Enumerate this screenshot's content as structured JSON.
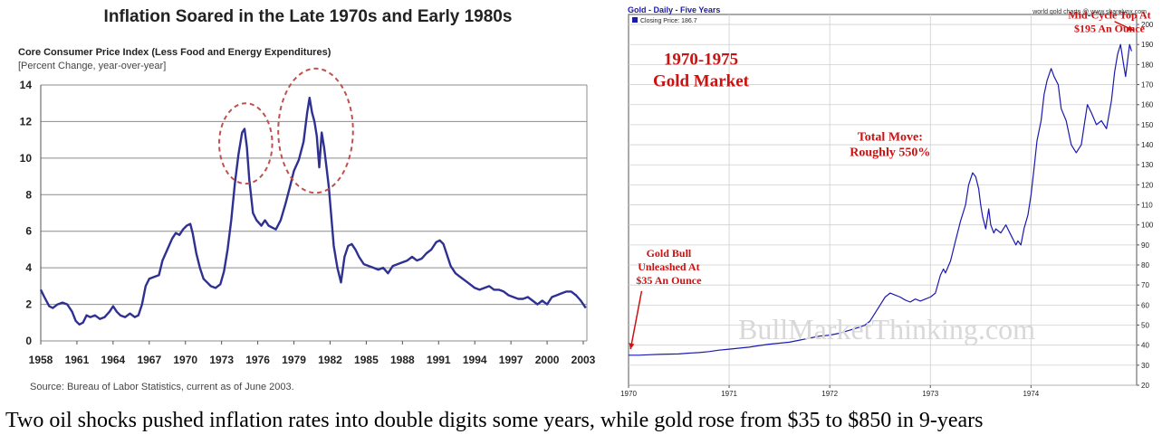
{
  "caption": "Two oil shocks pushed inflation rates into double digits some years, while gold rose from $35 to $850 in 9-years",
  "chart_data": [
    {
      "type": "line",
      "title": "Inflation Soared in the Late 1970s and Early 1980s",
      "subtitle": "Core Consumer Price Index (Less Food and Energy Expenditures)",
      "ylabel": "[Percent Change, year-over-year]",
      "source": "Source: Bureau of Labor Statistics, current as of June 2003.",
      "ylim": [
        0,
        14
      ],
      "xlim": [
        1958,
        2003.3
      ],
      "yticks": [
        "0",
        "2",
        "4",
        "6",
        "8",
        "10",
        "12",
        "14"
      ],
      "xticks": [
        "1958",
        "1961",
        "1964",
        "1967",
        "1970",
        "1973",
        "1976",
        "1979",
        "1982",
        "1985",
        "1988",
        "1991",
        "1994",
        "1997",
        "2000",
        "2003"
      ],
      "grid": true,
      "line_color": "#2e3192",
      "highlight_color": "#c0504d",
      "highlights": [
        {
          "x": 1975.0,
          "y": 10.8,
          "rx": 2.2,
          "ry": 2.2
        },
        {
          "x": 1980.8,
          "y": 11.5,
          "rx": 3.1,
          "ry": 3.4
        }
      ],
      "series": [
        {
          "x": [
            1958.0,
            1958.3,
            1958.7,
            1959.0,
            1959.4,
            1959.8,
            1960.2,
            1960.6,
            1960.9,
            1961.2,
            1961.5,
            1961.8,
            1962.1,
            1962.5,
            1962.9,
            1963.3,
            1963.7,
            1964.0,
            1964.3,
            1964.6,
            1965.0,
            1965.4,
            1965.8,
            1966.1,
            1966.4,
            1966.7,
            1967.0,
            1967.4,
            1967.8,
            1968.1,
            1968.5,
            1968.9,
            1969.2,
            1969.5,
            1969.8,
            1970.1,
            1970.4,
            1970.6,
            1970.9,
            1971.2,
            1971.5,
            1971.8,
            1972.1,
            1972.5,
            1972.9,
            1973.2,
            1973.5,
            1973.8,
            1974.1,
            1974.4,
            1974.7,
            1974.9,
            1975.1,
            1975.3,
            1975.6,
            1975.9,
            1976.3,
            1976.6,
            1976.9,
            1977.2,
            1977.5,
            1977.9,
            1978.3,
            1978.7,
            1979.0,
            1979.4,
            1979.8,
            1980.1,
            1980.3,
            1980.5,
            1980.7,
            1980.9,
            1981.1,
            1981.3,
            1981.5,
            1981.7,
            1981.9,
            1982.1,
            1982.3,
            1982.6,
            1982.9,
            1983.2,
            1983.5,
            1983.8,
            1984.1,
            1984.4,
            1984.8,
            1985.2,
            1985.6,
            1986.0,
            1986.4,
            1986.8,
            1987.2,
            1987.6,
            1988.0,
            1988.4,
            1988.8,
            1989.2,
            1989.6,
            1990.0,
            1990.4,
            1990.8,
            1991.1,
            1991.4,
            1991.7,
            1992.0,
            1992.4,
            1992.8,
            1993.2,
            1993.6,
            1994.0,
            1994.4,
            1994.8,
            1995.2,
            1995.6,
            1996.0,
            1996.4,
            1996.8,
            1997.2,
            1997.6,
            1998.0,
            1998.4,
            1998.8,
            1999.2,
            1999.6,
            2000.0,
            2000.4,
            2000.8,
            2001.2,
            2001.6,
            2002.0,
            2002.4,
            2002.8,
            2003.2
          ],
          "y": [
            2.8,
            2.4,
            1.9,
            1.8,
            2.0,
            2.1,
            2.0,
            1.6,
            1.1,
            0.9,
            1.0,
            1.4,
            1.3,
            1.4,
            1.2,
            1.3,
            1.6,
            1.9,
            1.6,
            1.4,
            1.3,
            1.5,
            1.3,
            1.4,
            2.0,
            3.0,
            3.4,
            3.5,
            3.6,
            4.4,
            5.0,
            5.6,
            5.9,
            5.8,
            6.1,
            6.3,
            6.4,
            5.9,
            4.8,
            4.0,
            3.4,
            3.2,
            3.0,
            2.9,
            3.1,
            3.8,
            5.0,
            6.6,
            8.6,
            10.2,
            11.4,
            11.6,
            10.6,
            8.8,
            7.0,
            6.6,
            6.3,
            6.6,
            6.3,
            6.2,
            6.1,
            6.6,
            7.5,
            8.5,
            9.3,
            9.9,
            10.9,
            12.5,
            13.3,
            12.5,
            12.0,
            11.2,
            9.5,
            11.4,
            10.6,
            9.5,
            8.4,
            6.8,
            5.2,
            4.0,
            3.2,
            4.6,
            5.2,
            5.3,
            5.0,
            4.6,
            4.2,
            4.1,
            4.0,
            3.9,
            4.0,
            3.7,
            4.1,
            4.2,
            4.3,
            4.4,
            4.6,
            4.4,
            4.5,
            4.8,
            5.0,
            5.4,
            5.5,
            5.3,
            4.7,
            4.1,
            3.7,
            3.5,
            3.3,
            3.1,
            2.9,
            2.8,
            2.9,
            3.0,
            2.8,
            2.8,
            2.7,
            2.5,
            2.4,
            2.3,
            2.3,
            2.4,
            2.2,
            2.0,
            2.2,
            2.0,
            2.4,
            2.5,
            2.6,
            2.7,
            2.7,
            2.5,
            2.2,
            1.8
          ]
        }
      ]
    },
    {
      "type": "line",
      "title": "Gold - Daily - Five Years",
      "credit": "world gold charts @ www.sharelynx.com",
      "legend": "Closing Price: 186.7",
      "watermark": "BullMarketThinking.com",
      "xlim": [
        1970,
        1975.05
      ],
      "ylim": [
        20,
        205
      ],
      "xticks": [
        {
          "label": "1970",
          "x": 1970
        },
        {
          "label": "1971",
          "x": 1971
        },
        {
          "label": "1972",
          "x": 1972
        },
        {
          "label": "1973",
          "x": 1973
        },
        {
          "label": "1974",
          "x": 1974
        }
      ],
      "yticks": [
        "20",
        "30",
        "40",
        "50",
        "60",
        "70",
        "80",
        "90",
        "100",
        "110",
        "120",
        "130",
        "140",
        "150",
        "160",
        "170",
        "180",
        "190",
        "200"
      ],
      "grid": true,
      "line_color": "#1a1ab0",
      "annotation_color": "#cc1111",
      "annotations": [
        {
          "lines": [
            "1970-1975",
            "Gold Market"
          ],
          "x": 1970.72,
          "y": 180,
          "size": "large"
        },
        {
          "lines": [
            "Total Move:",
            "Roughly 550%"
          ],
          "x": 1972.6,
          "y": 142,
          "size": "medium"
        },
        {
          "lines": [
            "Gold Bull",
            "Unleashed At",
            "$35 An Ounce"
          ],
          "x": 1970.4,
          "y": 84,
          "size": "small"
        },
        {
          "lines": [
            "Mid-Cycle Top At",
            "$195 An Ounce"
          ],
          "x": 1974.78,
          "y": 203,
          "size": "small"
        }
      ],
      "arrows": [
        {
          "from": [
            1970.13,
            67
          ],
          "to": [
            1970.02,
            38
          ]
        },
        {
          "from": [
            1974.83,
            201.5
          ],
          "to": [
            1975.02,
            197
          ]
        }
      ],
      "series": [
        {
          "x": [
            1970.0,
            1970.1,
            1970.2,
            1970.3,
            1970.4,
            1970.5,
            1970.6,
            1970.7,
            1970.8,
            1970.9,
            1971.0,
            1971.1,
            1971.2,
            1971.3,
            1971.4,
            1971.5,
            1971.6,
            1971.7,
            1971.8,
            1971.9,
            1972.0,
            1972.1,
            1972.2,
            1972.3,
            1972.35,
            1972.4,
            1972.45,
            1972.5,
            1972.55,
            1972.6,
            1972.65,
            1972.7,
            1972.75,
            1972.8,
            1972.85,
            1972.9,
            1972.95,
            1973.0,
            1973.05,
            1973.1,
            1973.13,
            1973.15,
            1973.2,
            1973.25,
            1973.3,
            1973.35,
            1973.38,
            1973.42,
            1973.45,
            1973.48,
            1973.5,
            1973.52,
            1973.55,
            1973.58,
            1973.6,
            1973.63,
            1973.65,
            1973.7,
            1973.75,
            1973.8,
            1973.85,
            1973.87,
            1973.9,
            1973.93,
            1973.97,
            1974.0,
            1974.03,
            1974.06,
            1974.1,
            1974.13,
            1974.16,
            1974.2,
            1974.23,
            1974.27,
            1974.3,
            1974.35,
            1974.4,
            1974.45,
            1974.5,
            1974.53,
            1974.56,
            1974.6,
            1974.65,
            1974.7,
            1974.75,
            1974.8,
            1974.83,
            1974.86,
            1974.89,
            1974.92,
            1974.94,
            1974.96,
            1974.98,
            1975.0
          ],
          "y": [
            35,
            35,
            35.2,
            35.4,
            35.5,
            35.6,
            36,
            36.3,
            36.8,
            37.5,
            38,
            38.5,
            39,
            39.8,
            40.5,
            41,
            41.5,
            42.5,
            43.5,
            44.5,
            45,
            46,
            47.5,
            49,
            50,
            52,
            56,
            60,
            64,
            66,
            65,
            64,
            62.5,
            61.5,
            63,
            62,
            63,
            64,
            66,
            75,
            78,
            76,
            82,
            92,
            102,
            110,
            120,
            126,
            124,
            118,
            110,
            104,
            98,
            108,
            100,
            96,
            98,
            96,
            100,
            95,
            90,
            92,
            90,
            98,
            105,
            115,
            128,
            142,
            152,
            165,
            172,
            178,
            174,
            170,
            158,
            152,
            140,
            136,
            140,
            150,
            160,
            156,
            150,
            152,
            148,
            162,
            176,
            185,
            190,
            180,
            174,
            182,
            190,
            186.7
          ]
        }
      ]
    }
  ]
}
